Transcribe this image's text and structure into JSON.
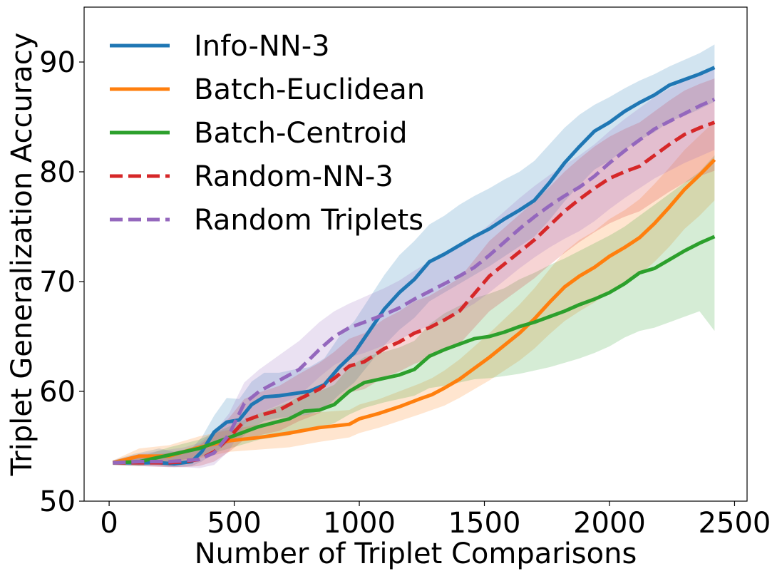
{
  "chart_data": {
    "type": "line",
    "title": "",
    "xlabel": "Number of Triplet Comparisons",
    "ylabel": "Triplet Generalization Accuracy",
    "xlim": [
      -100,
      2550
    ],
    "ylim": [
      50,
      95
    ],
    "xticks": [
      0,
      500,
      1000,
      1500,
      2000,
      2500
    ],
    "yticks": [
      50,
      60,
      70,
      80,
      90
    ],
    "legend_position": "top-left",
    "grid": false,
    "series": [
      {
        "name": "Info-NN-3",
        "color": "#1f77b4",
        "style": "solid",
        "x": [
          15,
          100,
          200,
          260,
          330,
          370,
          420,
          470,
          520,
          570,
          620,
          680,
          740,
          800,
          860,
          920,
          980,
          1040,
          1100,
          1160,
          1220,
          1280,
          1340,
          1400,
          1460,
          1520,
          1580,
          1640,
          1700,
          1760,
          1820,
          1880,
          1940,
          2000,
          2060,
          2120,
          2180,
          2240,
          2300,
          2360,
          2420
        ],
        "y": [
          53.5,
          53.5,
          53.5,
          53.4,
          53.6,
          54.5,
          56.3,
          57.2,
          57.4,
          58.8,
          59.5,
          59.6,
          59.8,
          60.0,
          60.6,
          62.2,
          63.5,
          65.5,
          67.5,
          69.0,
          70.2,
          71.8,
          72.5,
          73.3,
          74.1,
          74.8,
          75.7,
          76.5,
          77.4,
          79.0,
          80.8,
          82.3,
          83.7,
          84.5,
          85.5,
          86.3,
          87.0,
          87.9,
          88.4,
          88.9,
          89.5
        ],
        "lower": [
          53.3,
          53.3,
          53.2,
          53.1,
          53.2,
          53.6,
          54.4,
          55.2,
          55.6,
          56.6,
          57.3,
          57.6,
          57.7,
          57.9,
          58.4,
          59.7,
          60.8,
          62.5,
          64.2,
          65.6,
          66.7,
          68.2,
          69.0,
          69.8,
          70.6,
          71.4,
          72.3,
          73.2,
          74.1,
          75.6,
          77.3,
          78.8,
          80.2,
          81.0,
          82.0,
          82.9,
          83.6,
          84.6,
          85.1,
          85.7,
          86.4
        ],
        "upper": [
          53.7,
          54.3,
          54.8,
          54.5,
          54.8,
          55.8,
          57.8,
          59.4,
          59.3,
          60.9,
          61.7,
          61.7,
          62.0,
          62.2,
          63.0,
          65.0,
          66.4,
          68.5,
          70.6,
          72.4,
          73.7,
          75.2,
          76.0,
          77.0,
          77.8,
          78.5,
          79.3,
          80.0,
          81.0,
          82.5,
          84.0,
          85.2,
          86.1,
          86.8,
          87.6,
          88.3,
          88.9,
          89.6,
          90.2,
          90.8,
          91.6
        ]
      },
      {
        "name": "Batch-Euclidean",
        "color": "#ff7f0e",
        "style": "solid",
        "x": [
          15,
          120,
          240,
          360,
          480,
          600,
          720,
          840,
          960,
          1000,
          1080,
          1160,
          1240,
          1290,
          1340,
          1400,
          1460,
          1520,
          1580,
          1640,
          1700,
          1760,
          1820,
          1880,
          1940,
          2000,
          2060,
          2120,
          2180,
          2240,
          2300,
          2360,
          2420
        ],
        "y": [
          53.5,
          54.1,
          54.1,
          54.9,
          55.5,
          55.8,
          56.2,
          56.7,
          57.0,
          57.5,
          58.0,
          58.6,
          59.3,
          59.7,
          60.3,
          61.1,
          62.1,
          63.1,
          64.2,
          65.3,
          66.6,
          68.1,
          69.5,
          70.5,
          71.3,
          72.3,
          73.1,
          74.0,
          75.3,
          76.8,
          78.4,
          79.7,
          81.1
        ],
        "lower": [
          53.3,
          53.5,
          53.2,
          53.9,
          54.5,
          54.7,
          54.9,
          55.4,
          55.8,
          56.2,
          56.7,
          57.3,
          57.9,
          58.3,
          58.7,
          59.4,
          60.2,
          61.0,
          61.9,
          62.8,
          63.9,
          65.2,
          66.4,
          67.3,
          68.1,
          69.0,
          69.8,
          70.6,
          71.8,
          73.2,
          74.8,
          76.0,
          77.4
        ],
        "upper": [
          53.7,
          54.8,
          55.1,
          55.9,
          56.5,
          57.0,
          57.6,
          58.1,
          58.3,
          58.8,
          59.3,
          60.0,
          60.7,
          61.2,
          61.9,
          62.9,
          64.1,
          65.3,
          66.6,
          67.9,
          69.4,
          71.1,
          72.7,
          73.8,
          74.6,
          75.7,
          76.5,
          77.5,
          78.9,
          80.4,
          82.0,
          83.3,
          84.6
        ]
      },
      {
        "name": "Batch-Centroid",
        "color": "#2ca02c",
        "style": "solid",
        "x": [
          15,
          120,
          240,
          360,
          480,
          600,
          720,
          780,
          840,
          900,
          960,
          1020,
          1100,
          1160,
          1220,
          1280,
          1340,
          1400,
          1460,
          1520,
          1580,
          1640,
          1700,
          1760,
          1820,
          1880,
          1940,
          2000,
          2060,
          2120,
          2180,
          2240,
          2300,
          2360,
          2420
        ],
        "y": [
          53.5,
          53.6,
          54.2,
          54.8,
          55.8,
          56.8,
          57.5,
          58.2,
          58.3,
          58.8,
          60.0,
          60.8,
          61.2,
          61.5,
          62.0,
          63.2,
          63.8,
          64.3,
          64.8,
          65.0,
          65.4,
          65.9,
          66.3,
          66.8,
          67.3,
          67.9,
          68.4,
          69.0,
          69.8,
          70.8,
          71.2,
          72.0,
          72.8,
          73.5,
          74.1
        ],
        "lower": [
          53.3,
          53.2,
          53.6,
          54.0,
          54.8,
          55.6,
          56.0,
          56.5,
          56.7,
          57.1,
          57.9,
          58.5,
          59.0,
          59.3,
          59.6,
          60.3,
          60.5,
          60.8,
          61.1,
          61.2,
          61.4,
          61.6,
          61.9,
          62.2,
          62.6,
          63.0,
          63.5,
          64.1,
          64.9,
          65.5,
          65.8,
          66.3,
          66.8,
          67.3,
          65.5
        ],
        "upper": [
          53.7,
          54.0,
          54.9,
          55.6,
          56.8,
          58.0,
          59.0,
          59.9,
          60.0,
          60.6,
          62.2,
          63.1,
          63.6,
          64.0,
          64.6,
          66.1,
          67.1,
          67.8,
          68.5,
          68.9,
          69.4,
          70.2,
          70.8,
          71.5,
          72.1,
          72.8,
          73.5,
          74.2,
          75.0,
          76.0,
          77.0,
          78.0,
          79.0,
          80.0,
          81.5
        ]
      },
      {
        "name": "Random-NN-3",
        "color": "#d62728",
        "style": "dashed",
        "x": [
          15,
          120,
          240,
          300,
          360,
          420,
          480,
          540,
          600,
          680,
          760,
          840,
          900,
          960,
          1020,
          1100,
          1160,
          1220,
          1280,
          1340,
          1400,
          1460,
          1520,
          1580,
          1640,
          1700,
          1760,
          1820,
          1880,
          1940,
          2000,
          2060,
          2120,
          2180,
          2240,
          2300,
          2360,
          2420
        ],
        "y": [
          53.5,
          53.5,
          53.5,
          53.6,
          53.8,
          54.5,
          55.8,
          57.3,
          57.8,
          58.3,
          59.3,
          60.2,
          61.2,
          62.3,
          62.7,
          63.9,
          64.5,
          65.3,
          65.8,
          66.5,
          67.3,
          68.9,
          70.5,
          71.6,
          72.7,
          73.8,
          75.1,
          76.4,
          77.5,
          78.5,
          79.4,
          80.0,
          80.5,
          81.5,
          82.5,
          83.4,
          84.0,
          84.5
        ],
        "lower": [
          53.3,
          53.2,
          53.1,
          53.1,
          53.2,
          53.6,
          54.5,
          55.6,
          56.0,
          56.4,
          57.3,
          58.0,
          58.9,
          59.9,
          60.2,
          61.3,
          61.8,
          62.5,
          63.0,
          63.6,
          64.3,
          65.8,
          67.3,
          68.3,
          69.3,
          70.3,
          71.5,
          72.6,
          73.6,
          74.5,
          75.3,
          75.9,
          76.4,
          77.3,
          78.2,
          79.0,
          79.6,
          80.1
        ],
        "upper": [
          53.7,
          54.1,
          54.4,
          54.7,
          55.1,
          56.1,
          57.6,
          59.3,
          59.9,
          60.5,
          61.6,
          62.6,
          63.6,
          64.8,
          65.3,
          66.6,
          67.3,
          68.2,
          68.7,
          69.5,
          70.3,
          72.0,
          73.7,
          74.9,
          76.1,
          77.3,
          78.6,
          80.0,
          81.2,
          82.3,
          83.2,
          83.9,
          84.5,
          85.5,
          86.5,
          87.4,
          88.0,
          88.5
        ]
      },
      {
        "name": "Random Triplets",
        "color": "#9467bd",
        "style": "dashed",
        "x": [
          15,
          120,
          240,
          300,
          360,
          420,
          480,
          540,
          600,
          680,
          760,
          840,
          900,
          960,
          1020,
          1100,
          1160,
          1220,
          1280,
          1340,
          1400,
          1460,
          1520,
          1580,
          1640,
          1700,
          1760,
          1820,
          1880,
          1940,
          2000,
          2060,
          2120,
          2180,
          2240,
          2300,
          2360,
          2420
        ],
        "y": [
          53.5,
          53.6,
          53.6,
          53.7,
          53.8,
          54.4,
          56.1,
          58.9,
          60.0,
          61.0,
          62.0,
          63.8,
          65.0,
          65.8,
          66.3,
          67.0,
          67.6,
          68.4,
          69.1,
          69.8,
          70.5,
          71.3,
          72.4,
          73.6,
          74.8,
          75.9,
          76.9,
          77.8,
          78.6,
          79.6,
          80.8,
          81.9,
          82.9,
          83.9,
          84.6,
          85.3,
          86.0,
          86.6
        ],
        "lower": [
          53.3,
          53.2,
          53.1,
          53.1,
          53.0,
          53.3,
          54.6,
          57.0,
          58.0,
          58.8,
          59.6,
          61.3,
          62.4,
          63.1,
          63.5,
          64.2,
          64.7,
          65.4,
          66.0,
          66.6,
          67.2,
          68.0,
          69.0,
          70.1,
          71.2,
          72.2,
          73.1,
          73.9,
          74.6,
          75.5,
          76.6,
          77.6,
          78.5,
          79.4,
          80.1,
          80.8,
          81.4,
          82.0
        ],
        "upper": [
          53.7,
          54.3,
          54.7,
          54.9,
          55.3,
          56.3,
          58.0,
          60.8,
          62.0,
          63.3,
          64.6,
          66.3,
          67.3,
          68.0,
          68.6,
          69.4,
          70.1,
          71.0,
          71.8,
          72.6,
          73.3,
          74.1,
          75.2,
          76.4,
          77.6,
          78.7,
          79.7,
          80.6,
          81.5,
          82.5,
          83.7,
          84.8,
          85.8,
          86.8,
          87.6,
          88.3,
          88.9,
          89.5
        ]
      }
    ]
  }
}
